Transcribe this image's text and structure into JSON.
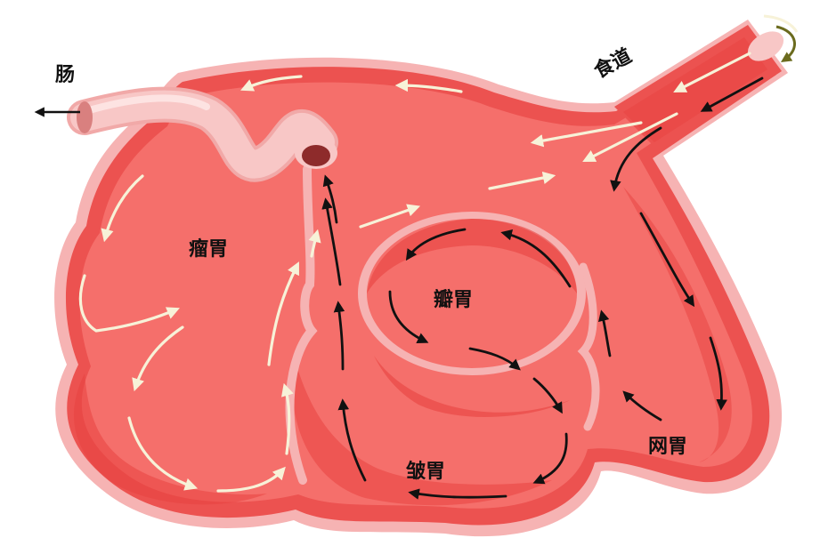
{
  "labels": {
    "intestine": "肠",
    "esophagus": "食道",
    "rumen": "瘤胃",
    "omasum": "瓣胃",
    "abomasum": "皱胃",
    "reticulum": "网胃"
  },
  "colors": {
    "outline": "#f6b3b3",
    "outer_wall": "#ec5250",
    "body": "#f56f6b",
    "inner_shade": "#e8423f",
    "tube": "#f8c7c6",
    "light_arrow": "#f7f2d8",
    "dark_arrow": "#111111",
    "feed_arrow": "#6b6b1e",
    "label": "#111111"
  },
  "icons": {
    "light_flow": "cream-arrow-icon",
    "digesta_flow": "black-arrow-icon",
    "exit": "outflow-arrow-icon"
  }
}
